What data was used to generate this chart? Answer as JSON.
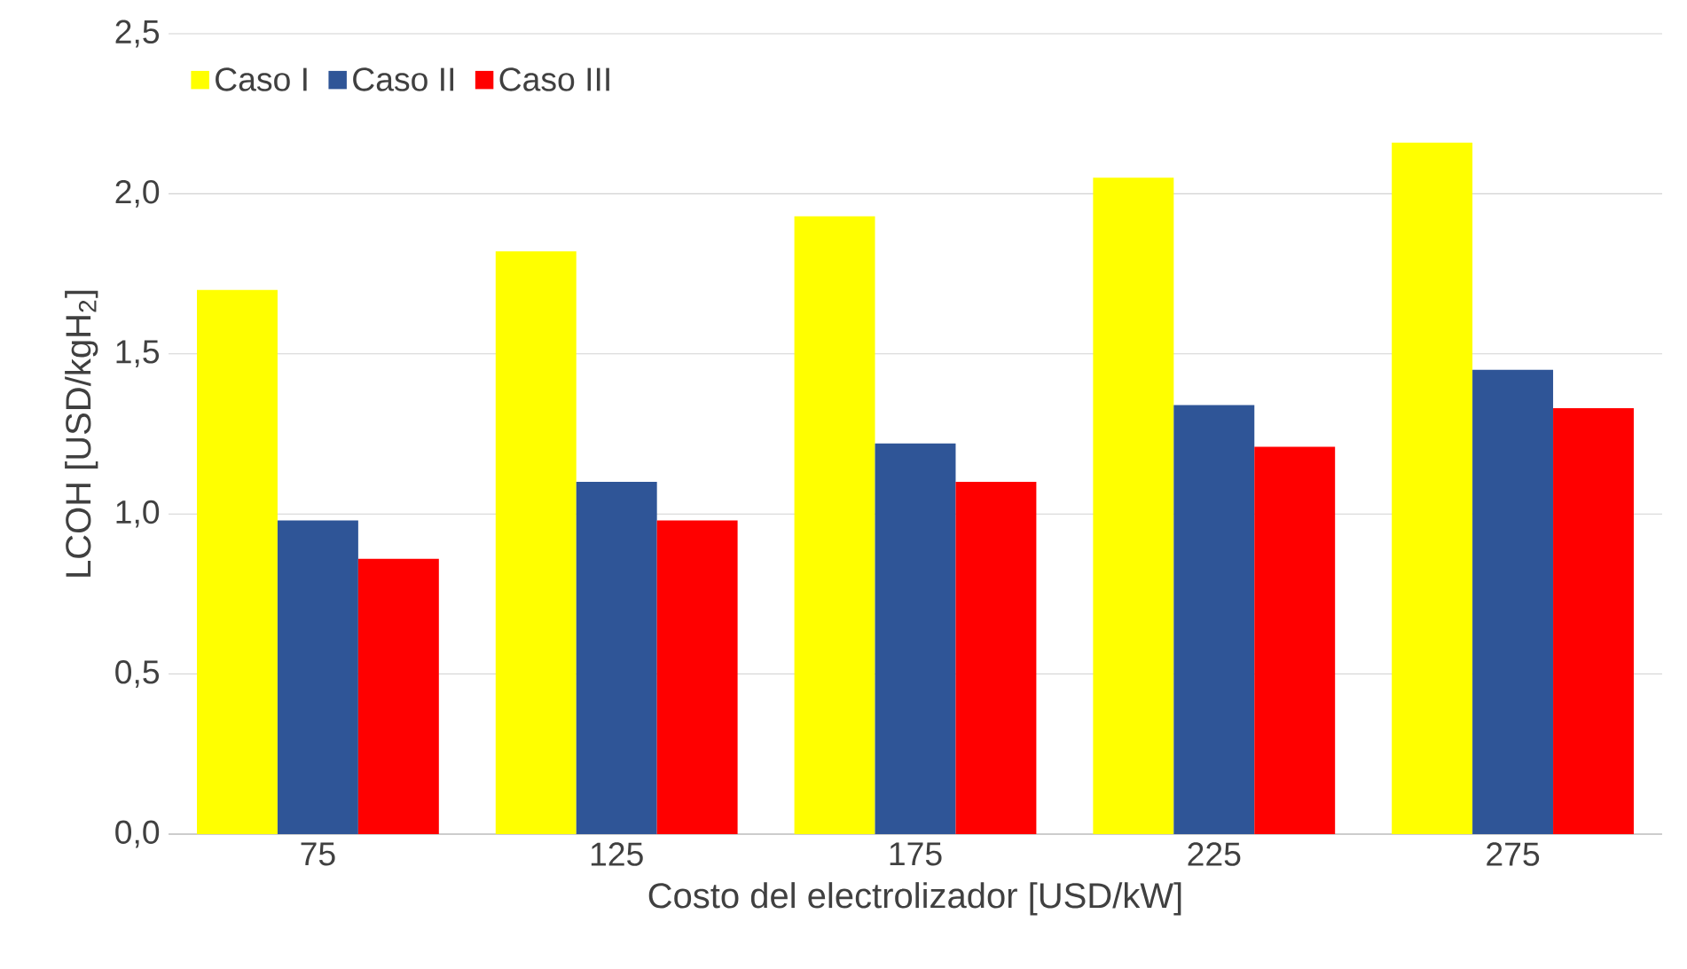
{
  "chart_data": {
    "type": "bar",
    "xlabel": "Costo del electrolizador [USD/kW]",
    "ylabel": "LCOH [USD/kgH$_{2}$]",
    "categories": [
      "75",
      "125",
      "175",
      "225",
      "275"
    ],
    "series": [
      {
        "name": "Caso I",
        "color": "#ffff00",
        "values": [
          1.7,
          1.82,
          1.93,
          2.05,
          2.16
        ]
      },
      {
        "name": "Caso II",
        "color": "#2f5597",
        "values": [
          0.98,
          1.1,
          1.22,
          1.34,
          1.45
        ]
      },
      {
        "name": "Caso III",
        "color": "#ff0000",
        "values": [
          0.86,
          0.98,
          1.1,
          1.21,
          1.33
        ]
      }
    ],
    "ylim": [
      0,
      2.5
    ],
    "yticks": [
      {
        "value": 0,
        "label": "0,0"
      },
      {
        "value": 0.5,
        "label": "0,5"
      },
      {
        "value": 1,
        "label": "1,0"
      },
      {
        "value": 1.5,
        "label": "1,5"
      },
      {
        "value": 2,
        "label": "2,0"
      },
      {
        "value": 2.5,
        "label": "2,5"
      }
    ],
    "grid": "y",
    "legend": "top left"
  }
}
